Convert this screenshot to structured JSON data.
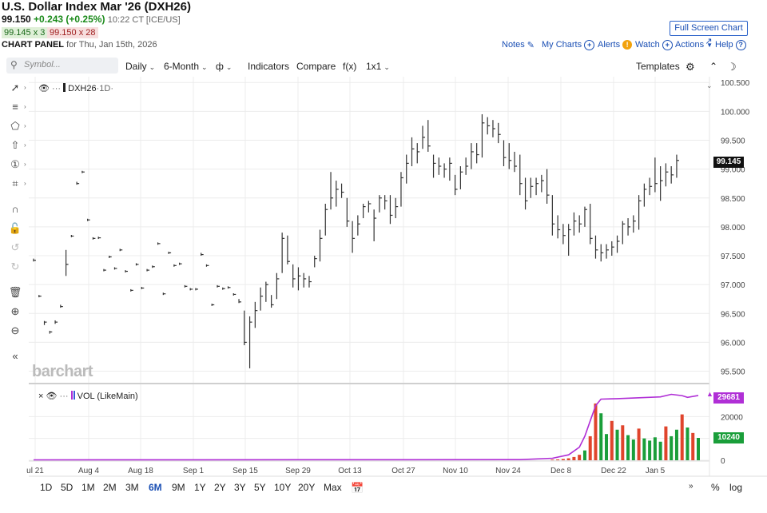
{
  "header": {
    "title": "U.S. Dollar Index Mar '26 (DXH26)",
    "last": "99.150",
    "change": "+0.243 (+0.25%)",
    "time": "10:22 CT [ICE/US]",
    "bid": "99.145 x 3",
    "ask": "99.150 x 28",
    "panel_label": "CHART PANEL",
    "panel_date": "for Thu, Jan 15th, 2026",
    "full_screen": "Full Screen Chart",
    "links": {
      "notes": "Notes",
      "my_charts": "My Charts",
      "alerts": "Alerts",
      "watch": "Watch",
      "actions": "Actions",
      "help": "Help"
    }
  },
  "toolbar": {
    "symbol_placeholder": "Symbol...",
    "interval": "Daily",
    "range": "6-Month",
    "indicators": "Indicators",
    "compare": "Compare",
    "fx": "f(x)",
    "layout": "1x1",
    "templates": "Templates"
  },
  "legend": {
    "symbol": "DXH26",
    "interval": "·1D·",
    "volume": "VOL (LikeMain)"
  },
  "watermark": "barchart",
  "price_axis": {
    "ticks": [
      "100.500",
      "100.000",
      "99.500",
      "99.000",
      "98.500",
      "98.000",
      "97.500",
      "97.000",
      "96.500",
      "96.000",
      "95.500"
    ],
    "current_label": "99.145"
  },
  "volume_axis": {
    "ticks": [
      "20000",
      "10000",
      "0"
    ],
    "ma_label": "29681",
    "current_label": "10240"
  },
  "x_axis": {
    "labels": [
      "ul 21",
      "Aug 4",
      "Aug 18",
      "Sep 1",
      "Sep 15",
      "Sep 29",
      "Oct 13",
      "Oct 27",
      "Nov 10",
      "Nov 24",
      "Dec 8",
      "Dec 22",
      "Jan 5"
    ]
  },
  "ranges": [
    "1D",
    "5D",
    "1M",
    "2M",
    "3M",
    "6M",
    "9M",
    "1Y",
    "2Y",
    "3Y",
    "5Y",
    "10Y",
    "20Y",
    "Max"
  ],
  "active_range": "6M",
  "bottom_right": {
    "percent": "%",
    "log": "log"
  },
  "colors": {
    "link": "#1a4fb4",
    "up": "#1a9e3a",
    "down": "#e0442c",
    "ma": "#b02fd6",
    "bar": "#333333"
  },
  "chart_data": {
    "type": "bar",
    "price_range": [
      95.3,
      100.6
    ],
    "ohlc_bars": [
      {
        "i": 0,
        "h": 97.45,
        "l": 97.4,
        "c": 97.42
      },
      {
        "i": 1,
        "h": 96.82,
        "l": 96.78,
        "c": 96.8
      },
      {
        "i": 2,
        "h": 96.37,
        "l": 96.3,
        "c": 96.35
      },
      {
        "i": 3,
        "h": 96.2,
        "l": 96.15,
        "c": 96.18
      },
      {
        "i": 4,
        "h": 96.38,
        "l": 96.32,
        "c": 96.35
      },
      {
        "i": 5,
        "h": 96.65,
        "l": 96.6,
        "c": 96.62
      },
      {
        "i": 6,
        "h": 97.6,
        "l": 97.15,
        "c": 97.35
      },
      {
        "i": 7,
        "h": 97.86,
        "l": 97.82,
        "c": 97.84
      },
      {
        "i": 8,
        "h": 98.78,
        "l": 98.73,
        "c": 98.75
      },
      {
        "i": 9,
        "h": 98.97,
        "l": 98.93,
        "c": 98.95
      },
      {
        "i": 10,
        "h": 98.14,
        "l": 98.1,
        "c": 98.12
      },
      {
        "i": 11,
        "h": 97.82,
        "l": 97.78,
        "c": 97.8
      },
      {
        "i": 12,
        "h": 97.83,
        "l": 97.79,
        "c": 97.81
      },
      {
        "i": 13,
        "h": 97.27,
        "l": 97.23,
        "c": 97.25
      },
      {
        "i": 14,
        "h": 97.5,
        "l": 97.46,
        "c": 97.48
      },
      {
        "i": 15,
        "h": 97.3,
        "l": 97.26,
        "c": 97.28
      },
      {
        "i": 16,
        "h": 97.62,
        "l": 97.58,
        "c": 97.6
      },
      {
        "i": 17,
        "h": 97.25,
        "l": 97.21,
        "c": 97.23
      },
      {
        "i": 18,
        "h": 96.92,
        "l": 96.88,
        "c": 96.9
      },
      {
        "i": 19,
        "h": 97.37,
        "l": 97.33,
        "c": 97.35
      },
      {
        "i": 20,
        "h": 96.96,
        "l": 96.92,
        "c": 96.94
      },
      {
        "i": 21,
        "h": 97.27,
        "l": 97.23,
        "c": 97.25
      },
      {
        "i": 22,
        "h": 97.33,
        "l": 97.29,
        "c": 97.31
      },
      {
        "i": 23,
        "h": 97.73,
        "l": 97.69,
        "c": 97.71
      },
      {
        "i": 24,
        "h": 96.86,
        "l": 96.82,
        "c": 96.84
      },
      {
        "i": 25,
        "h": 97.57,
        "l": 97.53,
        "c": 97.55
      },
      {
        "i": 26,
        "h": 97.35,
        "l": 97.31,
        "c": 97.33
      },
      {
        "i": 27,
        "h": 97.38,
        "l": 97.34,
        "c": 97.36
      },
      {
        "i": 28,
        "h": 96.99,
        "l": 96.95,
        "c": 96.97
      },
      {
        "i": 29,
        "h": 96.94,
        "l": 96.9,
        "c": 96.92
      },
      {
        "i": 30,
        "h": 96.94,
        "l": 96.9,
        "c": 96.92
      },
      {
        "i": 31,
        "h": 97.55,
        "l": 97.5,
        "c": 97.52
      },
      {
        "i": 32,
        "h": 97.35,
        "l": 97.31,
        "c": 97.33
      },
      {
        "i": 33,
        "h": 96.67,
        "l": 96.63,
        "c": 96.65
      },
      {
        "i": 34,
        "h": 96.99,
        "l": 96.95,
        "c": 96.97
      },
      {
        "i": 35,
        "h": 96.95,
        "l": 96.91,
        "c": 96.93
      },
      {
        "i": 36,
        "h": 96.97,
        "l": 96.93,
        "c": 96.95
      },
      {
        "i": 37,
        "h": 96.85,
        "l": 96.81,
        "c": 96.83
      },
      {
        "i": 38,
        "h": 96.75,
        "l": 96.68,
        "c": 96.7
      },
      {
        "i": 39,
        "h": 96.55,
        "l": 95.95,
        "c": 96.0
      },
      {
        "i": 40,
        "h": 96.45,
        "l": 95.55,
        "c": 96.35
      },
      {
        "i": 41,
        "h": 96.7,
        "l": 96.25,
        "c": 96.55
      },
      {
        "i": 42,
        "h": 96.95,
        "l": 96.55,
        "c": 96.8
      },
      {
        "i": 43,
        "h": 97.05,
        "l": 96.7,
        "c": 97.0
      },
      {
        "i": 44,
        "h": 96.82,
        "l": 96.6,
        "c": 96.65
      },
      {
        "i": 45,
        "h": 97.2,
        "l": 96.75,
        "c": 97.1
      },
      {
        "i": 46,
        "h": 97.9,
        "l": 97.2,
        "c": 97.8
      },
      {
        "i": 47,
        "h": 97.85,
        "l": 97.35,
        "c": 97.4
      },
      {
        "i": 48,
        "h": 97.35,
        "l": 96.95,
        "c": 97.1
      },
      {
        "i": 49,
        "h": 97.3,
        "l": 96.9,
        "c": 97.15
      },
      {
        "i": 50,
        "h": 97.2,
        "l": 96.95,
        "c": 97.1
      },
      {
        "i": 51,
        "h": 97.15,
        "l": 96.95,
        "c": 97.05
      },
      {
        "i": 52,
        "h": 97.5,
        "l": 97.3,
        "c": 97.45
      },
      {
        "i": 53,
        "h": 97.95,
        "l": 97.4,
        "c": 97.8
      },
      {
        "i": 54,
        "h": 98.4,
        "l": 97.85,
        "c": 98.3
      },
      {
        "i": 55,
        "h": 98.95,
        "l": 98.3,
        "c": 98.5
      },
      {
        "i": 56,
        "h": 98.8,
        "l": 98.35,
        "c": 98.65
      },
      {
        "i": 57,
        "h": 98.75,
        "l": 98.5,
        "c": 98.6
      },
      {
        "i": 58,
        "h": 98.5,
        "l": 98.0,
        "c": 98.1
      },
      {
        "i": 59,
        "h": 98.1,
        "l": 97.55,
        "c": 97.8
      },
      {
        "i": 60,
        "h": 98.2,
        "l": 97.85,
        "c": 98.05
      },
      {
        "i": 61,
        "h": 98.4,
        "l": 98.15,
        "c": 98.35
      },
      {
        "i": 62,
        "h": 98.45,
        "l": 98.25,
        "c": 98.4
      },
      {
        "i": 63,
        "h": 98.3,
        "l": 97.75,
        "c": 98.15
      },
      {
        "i": 64,
        "h": 98.55,
        "l": 98.25,
        "c": 98.5
      },
      {
        "i": 65,
        "h": 98.55,
        "l": 98.3,
        "c": 98.45
      },
      {
        "i": 66,
        "h": 98.55,
        "l": 98.05,
        "c": 98.2
      },
      {
        "i": 67,
        "h": 98.5,
        "l": 98.15,
        "c": 98.35
      },
      {
        "i": 68,
        "h": 98.95,
        "l": 98.35,
        "c": 98.85
      },
      {
        "i": 69,
        "h": 99.25,
        "l": 98.75,
        "c": 99.1
      },
      {
        "i": 70,
        "h": 99.55,
        "l": 99.05,
        "c": 99.35
      },
      {
        "i": 71,
        "h": 99.45,
        "l": 99.1,
        "c": 99.3
      },
      {
        "i": 72,
        "h": 99.75,
        "l": 99.35,
        "c": 99.55
      },
      {
        "i": 73,
        "h": 99.85,
        "l": 99.3,
        "c": 99.4
      },
      {
        "i": 74,
        "h": 99.25,
        "l": 98.85,
        "c": 99.1
      },
      {
        "i": 75,
        "h": 99.2,
        "l": 98.9,
        "c": 99.05
      },
      {
        "i": 76,
        "h": 99.1,
        "l": 98.85,
        "c": 99.0
      },
      {
        "i": 77,
        "h": 99.2,
        "l": 98.8,
        "c": 99.1
      },
      {
        "i": 78,
        "h": 98.9,
        "l": 98.55,
        "c": 98.65
      },
      {
        "i": 79,
        "h": 99.05,
        "l": 98.65,
        "c": 98.95
      },
      {
        "i": 80,
        "h": 99.2,
        "l": 98.9,
        "c": 99.05
      },
      {
        "i": 81,
        "h": 99.45,
        "l": 99.0,
        "c": 99.3
      },
      {
        "i": 82,
        "h": 99.45,
        "l": 99.1,
        "c": 99.25
      },
      {
        "i": 83,
        "h": 99.95,
        "l": 99.2,
        "c": 99.8
      },
      {
        "i": 84,
        "h": 99.9,
        "l": 99.6,
        "c": 99.75
      },
      {
        "i": 85,
        "h": 99.85,
        "l": 99.55,
        "c": 99.7
      },
      {
        "i": 86,
        "h": 99.8,
        "l": 99.45,
        "c": 99.6
      },
      {
        "i": 87,
        "h": 99.5,
        "l": 99.05,
        "c": 99.2
      },
      {
        "i": 88,
        "h": 99.45,
        "l": 99.0,
        "c": 99.15
      },
      {
        "i": 89,
        "h": 99.3,
        "l": 98.95,
        "c": 99.05
      },
      {
        "i": 90,
        "h": 99.25,
        "l": 98.55,
        "c": 98.75
      },
      {
        "i": 91,
        "h": 98.85,
        "l": 98.3,
        "c": 98.45
      },
      {
        "i": 92,
        "h": 98.85,
        "l": 98.5,
        "c": 98.7
      },
      {
        "i": 93,
        "h": 98.85,
        "l": 98.55,
        "c": 98.75
      },
      {
        "i": 94,
        "h": 98.9,
        "l": 98.6,
        "c": 98.8
      },
      {
        "i": 95,
        "h": 99.0,
        "l": 98.4,
        "c": 98.55
      },
      {
        "i": 96,
        "h": 98.55,
        "l": 97.85,
        "c": 98.05
      },
      {
        "i": 97,
        "h": 98.2,
        "l": 97.8,
        "c": 97.95
      },
      {
        "i": 98,
        "h": 98.05,
        "l": 97.7,
        "c": 97.85
      },
      {
        "i": 99,
        "h": 98.05,
        "l": 97.5,
        "c": 97.95
      },
      {
        "i": 100,
        "h": 98.25,
        "l": 97.85,
        "c": 98.1
      },
      {
        "i": 101,
        "h": 98.2,
        "l": 97.9,
        "c": 98.05
      },
      {
        "i": 102,
        "h": 98.35,
        "l": 98.0,
        "c": 98.3
      },
      {
        "i": 103,
        "h": 98.4,
        "l": 97.7,
        "c": 97.8
      },
      {
        "i": 104,
        "h": 97.85,
        "l": 97.45,
        "c": 97.6
      },
      {
        "i": 105,
        "h": 97.7,
        "l": 97.4,
        "c": 97.55
      },
      {
        "i": 106,
        "h": 97.7,
        "l": 97.45,
        "c": 97.6
      },
      {
        "i": 107,
        "h": 97.75,
        "l": 97.5,
        "c": 97.65
      },
      {
        "i": 108,
        "h": 97.85,
        "l": 97.55,
        "c": 97.75
      },
      {
        "i": 109,
        "h": 98.1,
        "l": 97.7,
        "c": 98.05
      },
      {
        "i": 110,
        "h": 98.15,
        "l": 97.85,
        "c": 98.0
      },
      {
        "i": 111,
        "h": 98.2,
        "l": 97.9,
        "c": 98.1
      },
      {
        "i": 112,
        "h": 98.55,
        "l": 97.95,
        "c": 98.45
      },
      {
        "i": 113,
        "h": 98.75,
        "l": 98.35,
        "c": 98.65
      },
      {
        "i": 114,
        "h": 98.85,
        "l": 98.55,
        "c": 98.7
      },
      {
        "i": 115,
        "h": 99.2,
        "l": 98.6,
        "c": 98.75
      },
      {
        "i": 116,
        "h": 99.05,
        "l": 98.45,
        "c": 98.8
      },
      {
        "i": 117,
        "h": 99.1,
        "l": 98.7,
        "c": 98.95
      },
      {
        "i": 118,
        "h": 99.05,
        "l": 98.75,
        "c": 98.9
      },
      {
        "i": 119,
        "h": 99.25,
        "l": 98.85,
        "c": 99.15
      }
    ],
    "volume": [
      {
        "i": 96,
        "v": 300,
        "up": false
      },
      {
        "i": 97,
        "v": 400,
        "up": false
      },
      {
        "i": 98,
        "v": 600,
        "up": false
      },
      {
        "i": 99,
        "v": 900,
        "up": false
      },
      {
        "i": 100,
        "v": 1500,
        "up": false
      },
      {
        "i": 101,
        "v": 2500,
        "up": false
      },
      {
        "i": 102,
        "v": 4500,
        "up": true
      },
      {
        "i": 103,
        "v": 11000,
        "up": false
      },
      {
        "i": 104,
        "v": 26000,
        "up": false
      },
      {
        "i": 105,
        "v": 21500,
        "up": true
      },
      {
        "i": 106,
        "v": 12000,
        "up": true
      },
      {
        "i": 107,
        "v": 18000,
        "up": false
      },
      {
        "i": 108,
        "v": 14000,
        "up": true
      },
      {
        "i": 109,
        "v": 16000,
        "up": false
      },
      {
        "i": 110,
        "v": 11500,
        "up": true
      },
      {
        "i": 111,
        "v": 9500,
        "up": true
      },
      {
        "i": 112,
        "v": 14500,
        "up": false
      },
      {
        "i": 113,
        "v": 10000,
        "up": true
      },
      {
        "i": 114,
        "v": 9000,
        "up": true
      },
      {
        "i": 115,
        "v": 10500,
        "up": true
      },
      {
        "i": 116,
        "v": 8500,
        "up": true
      },
      {
        "i": 117,
        "v": 15500,
        "up": false
      },
      {
        "i": 118,
        "v": 11000,
        "up": true
      },
      {
        "i": 119,
        "v": 14000,
        "up": true
      },
      {
        "i": 120,
        "v": 21000,
        "up": false
      },
      {
        "i": 121,
        "v": 15000,
        "up": true
      },
      {
        "i": 122,
        "v": 12500,
        "up": false
      },
      {
        "i": 123,
        "v": 10240,
        "up": true
      }
    ],
    "volume_ma": [
      {
        "i": 0,
        "v": 200
      },
      {
        "i": 90,
        "v": 300
      },
      {
        "i": 96,
        "v": 900
      },
      {
        "i": 99,
        "v": 2500
      },
      {
        "i": 101,
        "v": 6000
      },
      {
        "i": 102,
        "v": 11000
      },
      {
        "i": 103,
        "v": 18000
      },
      {
        "i": 104,
        "v": 25000
      },
      {
        "i": 105,
        "v": 28000
      },
      {
        "i": 108,
        "v": 28200
      },
      {
        "i": 112,
        "v": 28600
      },
      {
        "i": 116,
        "v": 29000
      },
      {
        "i": 118,
        "v": 30200
      },
      {
        "i": 120,
        "v": 29600
      },
      {
        "i": 121,
        "v": 28800
      },
      {
        "i": 123,
        "v": 29681
      }
    ],
    "volume_range": [
      0,
      30000
    ]
  }
}
